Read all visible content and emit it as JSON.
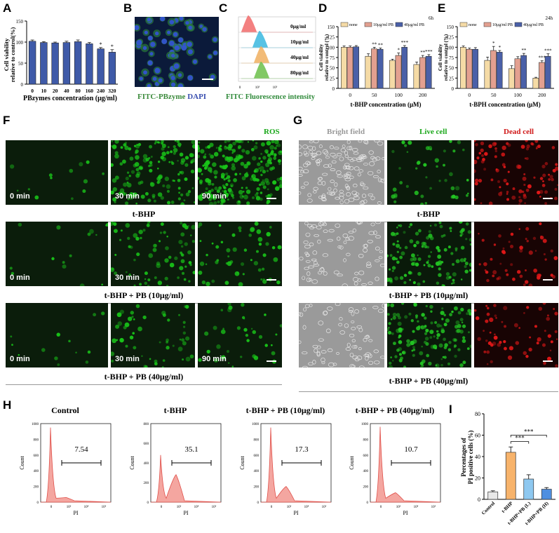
{
  "panel_letters": {
    "A": "A",
    "B": "B",
    "C": "C",
    "D": "D",
    "E": "E",
    "F": "F",
    "G": "G",
    "H": "H",
    "I": "I"
  },
  "panelA": {
    "ylabel": "Cell viability\nrelative to control(%)",
    "xlabel": "PBzymes concentration (μg/ml)"
  },
  "panelB": {
    "caption_fitc": "FITC-PBzyme",
    "caption_dapi": "DAPI"
  },
  "panelC": {
    "caption": "FITC Fluorescence intensity",
    "labels": [
      "0μg/ml",
      "10μg/ml",
      "40μg/ml",
      "80μg/ml"
    ]
  },
  "panelD": {
    "time": "6h",
    "xlabel": "t-BHP concentration (μM)",
    "ylabel": "Cell viability\nrelative to control (%)"
  },
  "panelE": {
    "time": "24h",
    "xlabel": "t-BPH concentration (μM)",
    "ylabel": "Cell viability\nrelative to control (%)"
  },
  "panelF": {
    "channel": "ROS",
    "rows": [
      {
        "caption": "t-BHP",
        "times": [
          "0 min",
          "30 min",
          "90 min"
        ]
      },
      {
        "caption": "t-BHP + PB  (10μg/ml)",
        "times": [
          "0 min",
          "30 min",
          ""
        ]
      },
      {
        "caption": "t-BHP + PB  (40μg/ml)",
        "times": [
          "0 min",
          "30 min",
          "90 min"
        ]
      }
    ]
  },
  "panelG": {
    "headers": [
      "Bright field",
      "Live cell",
      "Dead cell"
    ],
    "rows": [
      {
        "caption": "t-BHP"
      },
      {
        "caption": "t-BHP + PB  (10μg/ml)"
      },
      {
        "caption": "t-BHP + PB (40μg/ml)"
      }
    ]
  },
  "panelH": {
    "xlabel": "PI",
    "ylabel": "Count",
    "plots": [
      {
        "title": "Control",
        "value": "7.54",
        "ymax_label": "1000",
        "ticks": [
          "1000",
          "800",
          "600",
          "400",
          "200",
          "0"
        ]
      },
      {
        "title": "t-BHP",
        "value": "35.1",
        "ymax_label": "800",
        "ticks": [
          "800",
          "600",
          "400",
          "200",
          "0"
        ]
      },
      {
        "title": "t-BHP + PB  (10μg/ml)",
        "value": "17.3",
        "ticks": [
          "1000",
          "800",
          "600",
          "400",
          "200",
          "0"
        ]
      },
      {
        "title": "t-BHP + PB  (40μg/ml)",
        "value": "10.7",
        "ticks": [
          "1000",
          "800",
          "600",
          "400",
          "200",
          "0"
        ]
      }
    ]
  },
  "colors": {
    "bar_blue": "#3f5aa8",
    "bar_tan": "#f5dba6",
    "bar_salmon": "#e3a090",
    "bar_slate": "#4a60a8",
    "hist_fill": "#f4a6a0",
    "hist_line": "#e0504a",
    "orange": "#f7b36b",
    "lightblue": "#8ec8f0",
    "blue": "#4f8fe0",
    "ros_green": "#19c419",
    "dead_red": "#e01818"
  },
  "chart_data": [
    {
      "panel": "A",
      "type": "bar",
      "title": "",
      "xlabel": "PBzymes concentration (μg/ml)",
      "ylabel": "Cell viability relative to control(%)",
      "categories": [
        "0",
        "10",
        "20",
        "40",
        "80",
        "160",
        "240",
        "320"
      ],
      "values": [
        102,
        99,
        98,
        99,
        101,
        96,
        84,
        76
      ],
      "errors": [
        3,
        2,
        2,
        3,
        4,
        3,
        3,
        6
      ],
      "annotations": [
        "",
        "",
        "",
        "",
        "",
        "",
        "*",
        "*"
      ],
      "ylim": [
        0,
        150
      ],
      "yticks": [
        "0",
        "50",
        "100",
        "150"
      ]
    },
    {
      "panel": "D",
      "type": "bar",
      "title": "6h",
      "xlabel": "t-BHP concentration (μM)",
      "ylabel": "Cell viability relative to control (%)",
      "categories": [
        "0",
        "50",
        "100",
        "200"
      ],
      "series": [
        {
          "name": "none",
          "values": [
            100,
            78,
            68,
            58
          ],
          "errors": [
            3,
            6,
            3,
            6
          ]
        },
        {
          "name": "10μg/ml PB",
          "values": [
            100,
            96,
            80,
            75
          ],
          "errors": [
            3,
            4,
            6,
            5
          ]
        },
        {
          "name": "40μg/ml PB",
          "values": [
            101,
            95,
            100,
            78
          ],
          "errors": [
            3,
            3,
            4,
            4
          ]
        }
      ],
      "annotations": [
        [
          "",
          "",
          ""
        ],
        [
          "",
          "**",
          "**"
        ],
        [
          "",
          "*",
          "***"
        ],
        [
          "",
          "**",
          "***"
        ]
      ],
      "ylim": [
        0,
        150
      ],
      "yticks": [
        "0",
        "25",
        "50",
        "75",
        "100",
        "125",
        "150"
      ]
    },
    {
      "panel": "E",
      "type": "bar",
      "title": "24h",
      "xlabel": "t-BPH concentration (μM)",
      "ylabel": "Cell viability relative to control (%)",
      "categories": [
        "0",
        "50",
        "100",
        "200"
      ],
      "series": [
        {
          "name": "none",
          "values": [
            100,
            68,
            48,
            25
          ],
          "errors": [
            3,
            8,
            7,
            2
          ]
        },
        {
          "name": "10μg/ml PB",
          "values": [
            95,
            92,
            72,
            63
          ],
          "errors": [
            3,
            10,
            5,
            4
          ]
        },
        {
          "name": "40μg/ml PB",
          "values": [
            95,
            88,
            80,
            78
          ],
          "errors": [
            4,
            4,
            5,
            6
          ]
        }
      ],
      "annotations": [
        [
          "",
          "",
          ""
        ],
        [
          "",
          "*",
          "*"
        ],
        [
          "",
          "",
          "**"
        ],
        [
          "",
          "***",
          "***"
        ]
      ],
      "ylim": [
        0,
        150
      ],
      "yticks": [
        "0",
        "25",
        "50",
        "75",
        "100",
        "125",
        "150"
      ]
    },
    {
      "panel": "I",
      "type": "bar",
      "title": "",
      "xlabel": "",
      "ylabel": "Percentages of PI positive cells (%)",
      "categories": [
        "Control",
        "t-BHP",
        "t-BHP+PB (L)",
        "t-BHP+PB (H)"
      ],
      "values": [
        7,
        44,
        19,
        9.5
      ],
      "errors": [
        1,
        5,
        4,
        1.5
      ],
      "annotations": [
        "***",
        "***"
      ],
      "ylim": [
        0,
        80
      ],
      "yticks": [
        "0",
        "20",
        "40",
        "60",
        "80"
      ]
    }
  ]
}
